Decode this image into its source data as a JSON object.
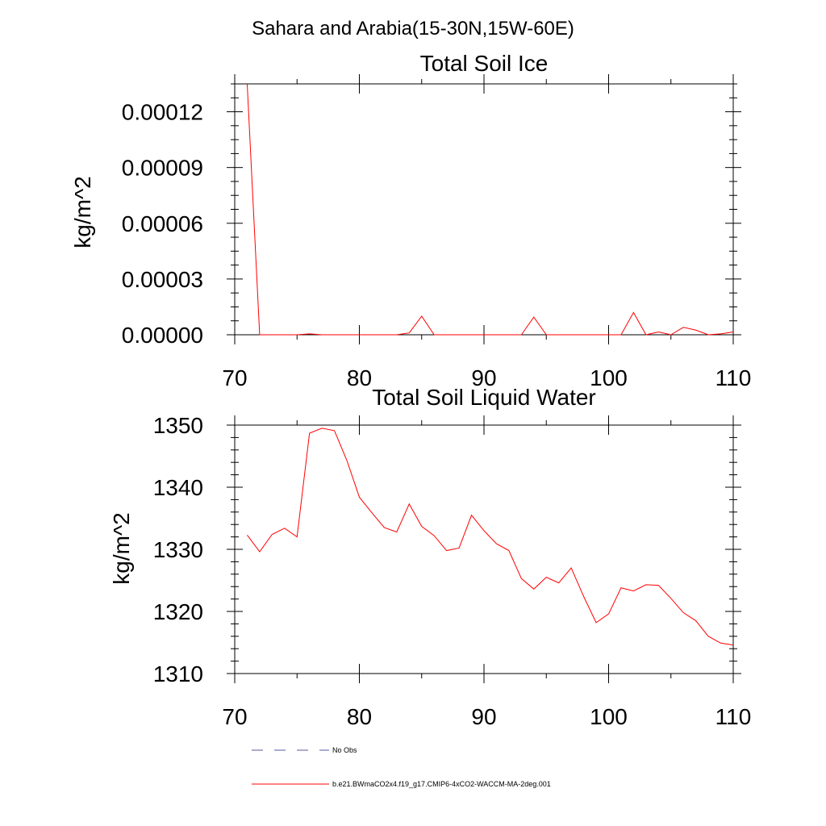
{
  "figure": {
    "title": "Sahara and Arabia(15-30N,15W-60E)",
    "line_color": "#ff0000",
    "obs_color": "#5a5aa0"
  },
  "legend": {
    "entries": [
      {
        "label": "No Obs",
        "style": "dashed"
      },
      {
        "label": "b.e21.BWmaCO2x4.f19_g17.CMIP6-4xCO2-WACCM-MA-2deg.001",
        "style": "solid"
      }
    ]
  },
  "chart_data": [
    {
      "type": "line",
      "title": "Total Soil Ice",
      "xlabel": "",
      "ylabel": "kg/m^2",
      "xlim": [
        70,
        110
      ],
      "ylim": [
        0,
        0.000135
      ],
      "x_ticks": [
        70,
        80,
        90,
        100,
        110
      ],
      "x_tick_labels": [
        "70",
        "80",
        "90",
        "100",
        "110"
      ],
      "y_ticks": [
        0,
        3e-05,
        6e-05,
        9e-05,
        0.00012
      ],
      "y_tick_labels": [
        "0.00000",
        "0.00003",
        "0.00006",
        "0.00009",
        "0.00012"
      ],
      "series": [
        {
          "name": "b.e21.BWmaCO2x4.f19_g17.CMIP6-4xCO2-WACCM-MA-2deg.001",
          "x": [
            71,
            72,
            73,
            74,
            75,
            76,
            77,
            78,
            79,
            80,
            81,
            82,
            83,
            84,
            85,
            86,
            87,
            88,
            89,
            90,
            91,
            92,
            93,
            94,
            95,
            96,
            97,
            98,
            99,
            100,
            101,
            102,
            103,
            104,
            105,
            106,
            107,
            108,
            109,
            110
          ],
          "values": [
            0.000135,
            0,
            0,
            0,
            0,
            5e-07,
            0,
            0,
            0,
            0,
            0,
            0,
            0,
            1e-06,
            1e-05,
            0,
            0,
            0,
            0,
            0,
            0,
            0,
            0,
            9.5e-06,
            0,
            0,
            0,
            0,
            0,
            0,
            0,
            1.2e-05,
            0,
            1.5e-06,
            0,
            4e-06,
            2.5e-06,
            0,
            5e-07,
            1.5e-06
          ]
        }
      ]
    },
    {
      "type": "line",
      "title": "Total Soil Liquid Water",
      "xlabel": "",
      "ylabel": "kg/m^2",
      "xlim": [
        70,
        110
      ],
      "ylim": [
        1310,
        1350
      ],
      "x_ticks": [
        70,
        80,
        90,
        100,
        110
      ],
      "x_tick_labels": [
        "70",
        "80",
        "90",
        "100",
        "110"
      ],
      "y_ticks": [
        1310,
        1320,
        1330,
        1340,
        1350
      ],
      "y_tick_labels": [
        "1310",
        "1320",
        "1330",
        "1340",
        "1350"
      ],
      "series": [
        {
          "name": "b.e21.BWmaCO2x4.f19_g17.CMIP6-4xCO2-WACCM-MA-2deg.001",
          "x": [
            71,
            72,
            73,
            74,
            75,
            76,
            77,
            78,
            79,
            80,
            81,
            82,
            83,
            84,
            85,
            86,
            87,
            88,
            89,
            90,
            91,
            92,
            93,
            94,
            95,
            96,
            97,
            98,
            99,
            100,
            101,
            102,
            103,
            104,
            105,
            106,
            107,
            108,
            109,
            110
          ],
          "values": [
            1332.3,
            1329.6,
            1332.4,
            1333.4,
            1332.0,
            1348.7,
            1349.5,
            1349.1,
            1344.3,
            1338.4,
            1335.9,
            1333.5,
            1332.8,
            1337.3,
            1333.7,
            1332.2,
            1329.8,
            1330.2,
            1335.5,
            1333.0,
            1330.9,
            1329.8,
            1325.3,
            1323.6,
            1325.5,
            1324.6,
            1327.0,
            1322.4,
            1318.2,
            1319.6,
            1323.8,
            1323.3,
            1324.3,
            1324.2,
            1322.1,
            1319.8,
            1318.5,
            1316.0,
            1314.9,
            1314.6
          ]
        }
      ]
    }
  ]
}
